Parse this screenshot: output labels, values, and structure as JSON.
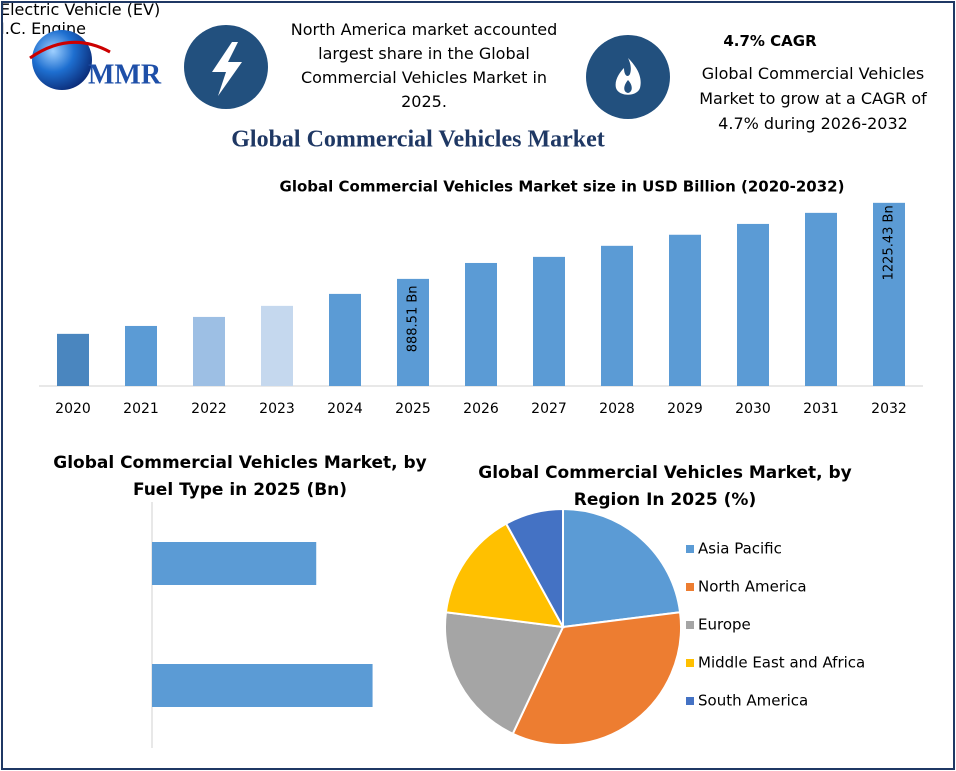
{
  "header": {
    "logo": "MMR",
    "highlight": "North America market accounted largest share in the Global Commercial Vehicles Market in 2025.",
    "cagr_title": "4.7% CAGR",
    "cagr_text": "Global Commercial Vehicles Market to grow at a CAGR of 4.7% during 2026-2032",
    "title": "Global Commercial Vehicles Market"
  },
  "chart_data": [
    {
      "type": "bar",
      "orientation": "vertical",
      "title": "Global Commercial Vehicles Market size in USD Billion (2020-2032)",
      "categories": [
        "2020",
        "2021",
        "2022",
        "2023",
        "2024",
        "2025",
        "2026",
        "2027",
        "2028",
        "2029",
        "2030",
        "2031",
        "2032"
      ],
      "values": [
        645,
        680,
        720,
        769,
        822,
        888.51,
        959,
        986,
        1035,
        1084,
        1132,
        1181,
        1225.43
      ],
      "value_labels": [
        null,
        null,
        null,
        null,
        null,
        "888.51 Bn",
        null,
        null,
        null,
        null,
        null,
        null,
        "1225.43 Bn"
      ],
      "colors": [
        "#4a86bf",
        "#5b9bd5",
        "#9dbfe4",
        "#c5d8ee",
        "#5b9bd5",
        "#5b9bd5",
        "#5b9bd5",
        "#5b9bd5",
        "#5b9bd5",
        "#5b9bd5",
        "#5b9bd5",
        "#5b9bd5",
        "#5b9bd5"
      ],
      "ylim": [
        414,
        1300
      ],
      "grid": false
    },
    {
      "type": "bar",
      "orientation": "horizontal",
      "title": "Global Commercial Vehicles Market, by Fuel Type in 2025 (Bn)",
      "categories": [
        "Electric Vehicle (EV)",
        "I.C. Engine"
      ],
      "values": [
        379,
        509
      ],
      "color": "#5b9bd5",
      "xlim": [
        0,
        600
      ],
      "grid": false
    },
    {
      "type": "pie",
      "title": "Global Commercial Vehicles Market, by Region In 2025 (%)",
      "categories": [
        "Asia Pacific",
        "North America",
        "Europe",
        "Middle East and Africa",
        "South America"
      ],
      "values": [
        23,
        34,
        20,
        15,
        8
      ],
      "colors": [
        "#5b9bd5",
        "#ed7d31",
        "#a5a5a5",
        "#ffc000",
        "#4472c4"
      ],
      "legend": "right"
    }
  ]
}
